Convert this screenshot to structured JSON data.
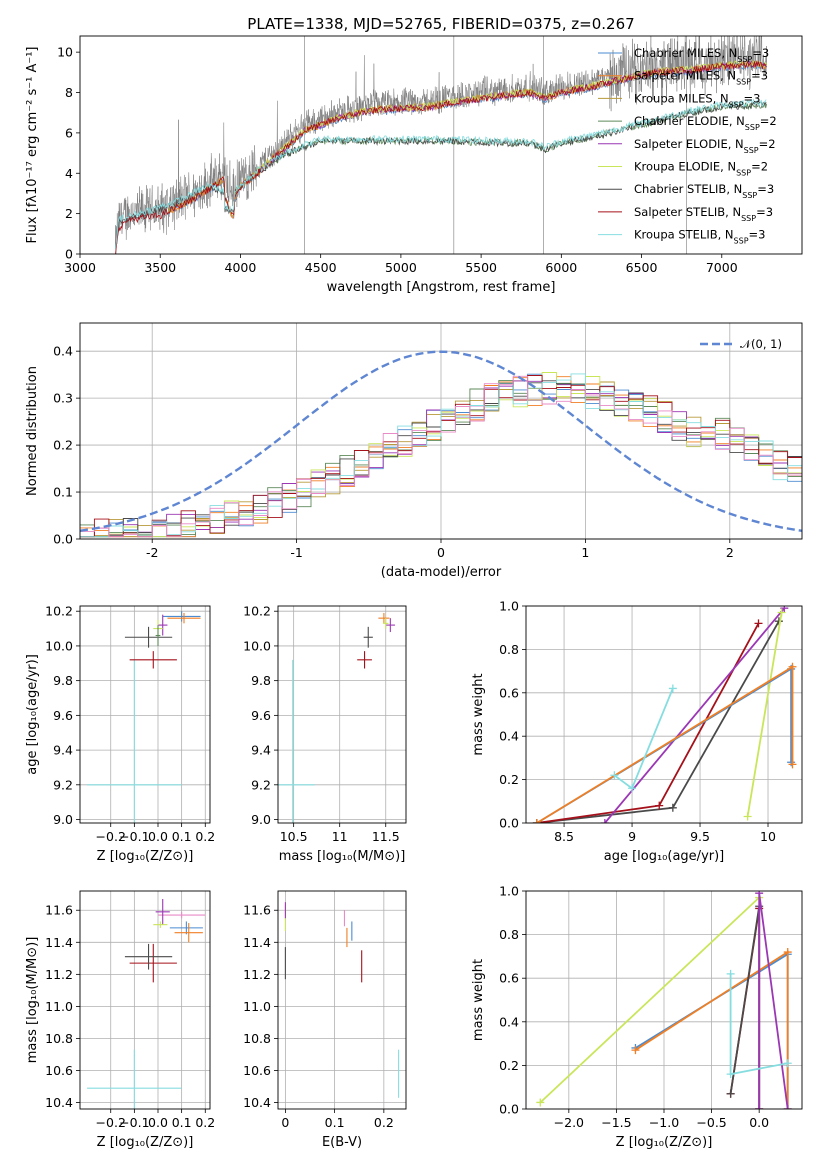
{
  "colors": {
    "chabrier_miles": "#4b8bd0",
    "salpeter_miles": "#f07f24",
    "kroupa_miles": "#b79a3a",
    "chabrier_elodie": "#5d8a5a",
    "salpeter_elodie": "#9b37b4",
    "kroupa_elodie": "#c9e65a",
    "chabrier_stelib": "#4a4a4a",
    "salpeter_stelib": "#a5111a",
    "kroupa_stelib": "#86dde0",
    "data_gray": "#7a7a7a",
    "gauss": "#5f86d2",
    "pink": "#e88bc7"
  },
  "chart_data": [
    {
      "id": "spectrum",
      "type": "line",
      "title": "PLATE=1338, MJD=52765, FIBERID=0375, z=0.267",
      "xlabel": "wavelength [Angstrom, rest frame]",
      "ylabel": "Flux [fλ10⁻¹⁷ erg cm⁻² s⁻¹ A⁻¹]",
      "xlim": [
        3000,
        7500
      ],
      "ylim": [
        0,
        10.8
      ],
      "xticks": [
        3000,
        3500,
        4000,
        4500,
        5000,
        5500,
        6000,
        6500,
        7000
      ],
      "yticks": [
        0,
        2,
        4,
        6,
        8,
        10
      ],
      "legend": [
        {
          "label": "Chabrier MILES, N",
          "sub": "SSP",
          "tail": "=3",
          "color": "chabrier_miles"
        },
        {
          "label": "Salpeter MILES, N",
          "sub": "SSP",
          "tail": "=3",
          "color": "salpeter_miles"
        },
        {
          "label": "Kroupa MILES, N",
          "sub": "SSP",
          "tail": "=3",
          "color": "kroupa_miles"
        },
        {
          "label": "Chabrier ELODIE, N",
          "sub": "SSP",
          "tail": "=2",
          "color": "chabrier_elodie"
        },
        {
          "label": "Salpeter ELODIE, N",
          "sub": "SSP",
          "tail": "=2",
          "color": "salpeter_elodie"
        },
        {
          "label": "Kroupa ELODIE, N",
          "sub": "SSP",
          "tail": "=2",
          "color": "kroupa_elodie"
        },
        {
          "label": "Chabrier STELIB, N",
          "sub": "SSP",
          "tail": "=3",
          "color": "chabrier_stelib"
        },
        {
          "label": "Salpeter STELIB, N",
          "sub": "SSP",
          "tail": "=3",
          "color": "salpeter_stelib"
        },
        {
          "label": "Kroupa STELIB, N",
          "sub": "SSP",
          "tail": "=3",
          "color": "kroupa_stelib"
        }
      ],
      "legend_position": "top-right",
      "spectrum_knots": [
        [
          3220,
          0.1
        ],
        [
          3240,
          1.6
        ],
        [
          3300,
          2.0
        ],
        [
          3400,
          2.1
        ],
        [
          3500,
          2.2
        ],
        [
          3600,
          2.6
        ],
        [
          3700,
          3.0
        ],
        [
          3800,
          3.5
        ],
        [
          3900,
          4.0
        ],
        [
          3950,
          2.9
        ],
        [
          4000,
          3.6
        ],
        [
          4100,
          4.3
        ],
        [
          4200,
          5.0
        ],
        [
          4300,
          5.7
        ],
        [
          4400,
          6.4
        ],
        [
          4600,
          7.0
        ],
        [
          4800,
          7.4
        ],
        [
          5000,
          7.5
        ],
        [
          5200,
          7.6
        ],
        [
          5400,
          7.9
        ],
        [
          5600,
          8.1
        ],
        [
          5800,
          8.3
        ],
        [
          5900,
          8.0
        ],
        [
          6000,
          8.3
        ],
        [
          6200,
          8.6
        ],
        [
          6400,
          9.0
        ],
        [
          6600,
          9.3
        ],
        [
          6800,
          9.4
        ],
        [
          7000,
          9.6
        ],
        [
          7200,
          9.7
        ],
        [
          7280,
          9.6
        ]
      ],
      "low_model_knots": [
        [
          3220,
          0.1
        ],
        [
          3240,
          1.6
        ],
        [
          3400,
          2.0
        ],
        [
          3600,
          2.5
        ],
        [
          3800,
          3.3
        ],
        [
          3950,
          2.9
        ],
        [
          4100,
          4.0
        ],
        [
          4300,
          5.0
        ],
        [
          4500,
          5.6
        ],
        [
          4800,
          5.6
        ],
        [
          5000,
          5.6
        ],
        [
          5300,
          5.6
        ],
        [
          5600,
          5.5
        ],
        [
          5800,
          5.5
        ],
        [
          5900,
          5.2
        ],
        [
          6000,
          5.5
        ],
        [
          6200,
          5.8
        ],
        [
          6400,
          6.2
        ],
        [
          6600,
          6.6
        ],
        [
          6800,
          7.0
        ],
        [
          7000,
          7.3
        ],
        [
          7280,
          7.4
        ]
      ]
    },
    {
      "id": "residuals",
      "type": "histogram",
      "xlabel": "(data-model)/error",
      "ylabel": "Normed distribution",
      "xlim": [
        -2.5,
        2.5
      ],
      "ylim": [
        0,
        0.46
      ],
      "xticks": [
        -2,
        -1,
        0,
        1,
        2
      ],
      "yticks": [
        0.0,
        0.1,
        0.2,
        0.3,
        0.4
      ],
      "legend": [
        {
          "label": "𝒩(0, 1)",
          "color": "gauss",
          "style": "dashed"
        }
      ],
      "legend_position": "top-right",
      "gaussian": {
        "mu": 0,
        "sigma": 1
      }
    },
    {
      "id": "age_vs_Z",
      "type": "errorbar",
      "xlabel": "Z [log₁₀(Z/Z⊙)]",
      "ylabel": "age  [log₁₀(age/yr)]",
      "xlim": [
        -0.33,
        0.22
      ],
      "ylim": [
        8.98,
        10.23
      ],
      "xticks": [
        -0.2,
        -0.1,
        0.0,
        0.1,
        0.2
      ],
      "xtick_labels": [
        "−0.2",
        "−0.1",
        "0.0",
        "0.1",
        "0.2"
      ],
      "yticks": [
        9.0,
        9.2,
        9.4,
        9.6,
        9.8,
        10.0,
        10.2
      ],
      "points": [
        {
          "x": -0.1,
          "y": 9.2,
          "xerr": 0.2,
          "yerr": 0.72,
          "color": "kroupa_stelib"
        },
        {
          "x": -0.02,
          "y": 9.92,
          "xerr": 0.1,
          "yerr": 0.05,
          "color": "salpeter_stelib"
        },
        {
          "x": -0.04,
          "y": 10.05,
          "xerr": 0.1,
          "yerr": 0.06,
          "color": "chabrier_stelib"
        },
        {
          "x": 0.1,
          "y": 10.17,
          "xerr": 0.08,
          "yerr": 0.03,
          "color": "chabrier_miles"
        },
        {
          "x": 0.11,
          "y": 10.16,
          "xerr": 0.07,
          "yerr": 0.03,
          "color": "salpeter_miles"
        },
        {
          "x": 0.02,
          "y": 10.12,
          "xerr": 0.02,
          "yerr": 0.06,
          "color": "salpeter_elodie"
        },
        {
          "x": 0.0,
          "y": 10.1,
          "xerr": 0.02,
          "yerr": 0.05,
          "color": "kroupa_elodie"
        },
        {
          "x": 0.0,
          "y": 10.06,
          "xerr": 0.01,
          "yerr": 0.06,
          "color": "chabrier_elodie"
        }
      ]
    },
    {
      "id": "age_vs_mass",
      "type": "errorbar",
      "xlabel": "mass [log₁₀(M/M⊙)]",
      "ylabel": "",
      "xlim": [
        10.33,
        11.72
      ],
      "ylim": [
        8.98,
        10.23
      ],
      "xticks": [
        10.5,
        11.0,
        11.5
      ],
      "yticks": [
        9.0,
        9.2,
        9.4,
        9.6,
        9.8,
        10.0,
        10.2
      ],
      "points": [
        {
          "x": 10.49,
          "y": 9.2,
          "xerr": 0.24,
          "yerr": 0.72,
          "color": "kroupa_stelib"
        },
        {
          "x": 11.27,
          "y": 9.92,
          "xerr": 0.08,
          "yerr": 0.05,
          "color": "salpeter_stelib"
        },
        {
          "x": 11.31,
          "y": 10.05,
          "xerr": 0.05,
          "yerr": 0.06,
          "color": "chabrier_stelib"
        },
        {
          "x": 11.48,
          "y": 10.16,
          "xerr": 0.06,
          "yerr": 0.03,
          "color": "salpeter_miles"
        },
        {
          "x": 11.55,
          "y": 10.12,
          "xerr": 0.05,
          "yerr": 0.04,
          "color": "salpeter_elodie"
        },
        {
          "x": 11.5,
          "y": 10.13,
          "xerr": 0.03,
          "yerr": 0.03,
          "color": "kroupa_elodie"
        }
      ]
    },
    {
      "id": "weight_vs_age",
      "type": "line",
      "xlabel": "age  [log₁₀(age/yr)]",
      "ylabel": "mass weight",
      "xlim": [
        8.22,
        10.25
      ],
      "ylim": [
        0,
        1
      ],
      "xticks": [
        8.5,
        9.0,
        9.5,
        10.0
      ],
      "yticks": [
        0.0,
        0.2,
        0.4,
        0.6,
        0.8,
        1.0
      ],
      "series": [
        {
          "color": "chabrier_stelib",
          "x": [
            8.3,
            9.3,
            10.08
          ],
          "y": [
            0.0,
            0.07,
            0.93
          ]
        },
        {
          "color": "salpeter_stelib",
          "x": [
            8.3,
            9.2,
            9.93
          ],
          "y": [
            0.0,
            0.08,
            0.92
          ]
        },
        {
          "color": "salpeter_elodie",
          "x": [
            8.8,
            10.12
          ],
          "y": [
            0.0,
            0.99
          ]
        },
        {
          "color": "kroupa_elodie",
          "x": [
            9.85,
            10.1
          ],
          "y": [
            0.03,
            0.97
          ]
        },
        {
          "color": "chabrier_miles",
          "x": [
            8.3,
            10.17,
            10.17
          ],
          "y": [
            0.0,
            0.71,
            0.28
          ]
        },
        {
          "color": "salpeter_miles",
          "x": [
            8.3,
            10.18,
            10.18
          ],
          "y": [
            0.0,
            0.72,
            0.27
          ]
        },
        {
          "color": "kroupa_stelib",
          "x": [
            9.3,
            9.0,
            8.87
          ],
          "y": [
            0.62,
            0.16,
            0.22
          ]
        }
      ]
    },
    {
      "id": "mass_vs_Z",
      "type": "errorbar",
      "xlabel": "Z [log₁₀(Z/Z⊙)]",
      "ylabel": "mass [log₁₀(M/M⊙)]",
      "xlim": [
        -0.33,
        0.22
      ],
      "ylim": [
        10.36,
        11.72
      ],
      "xticks": [
        -0.2,
        -0.1,
        0.0,
        0.1,
        0.2
      ],
      "xtick_labels": [
        "−0.2",
        "−0.1",
        "0.0",
        "0.1",
        "0.2"
      ],
      "yticks": [
        10.4,
        10.6,
        10.8,
        11.0,
        11.2,
        11.4,
        11.6
      ],
      "points": [
        {
          "x": -0.1,
          "y": 10.49,
          "xerr": 0.2,
          "yerr": 0.24,
          "color": "kroupa_stelib"
        },
        {
          "x": -0.02,
          "y": 11.27,
          "xerr": 0.1,
          "yerr": 0.12,
          "color": "salpeter_stelib"
        },
        {
          "x": -0.04,
          "y": 11.31,
          "xerr": 0.1,
          "yerr": 0.08,
          "color": "chabrier_stelib"
        },
        {
          "x": 0.12,
          "y": 11.49,
          "xerr": 0.07,
          "yerr": 0.04,
          "color": "chabrier_miles"
        },
        {
          "x": 0.13,
          "y": 11.46,
          "xerr": 0.06,
          "yerr": 0.06,
          "color": "salpeter_miles"
        },
        {
          "x": 0.1,
          "y": 11.57,
          "xerr": 0.1,
          "yerr": 0.02,
          "color": "pink"
        },
        {
          "x": 0.02,
          "y": 11.59,
          "xerr": 0.03,
          "yerr": 0.08,
          "color": "salpeter_elodie"
        },
        {
          "x": 0.01,
          "y": 11.51,
          "xerr": 0.03,
          "yerr": 0.02,
          "color": "kroupa_elodie"
        }
      ]
    },
    {
      "id": "mass_vs_ebv",
      "type": "errorbar",
      "xlabel": "E(B-V)",
      "ylabel": "",
      "xlim": [
        -0.015,
        0.245
      ],
      "ylim": [
        10.36,
        11.72
      ],
      "xticks": [
        0.0,
        0.1,
        0.2
      ],
      "yticks": [
        10.4,
        10.6,
        10.8,
        11.0,
        11.2,
        11.4,
        11.6
      ],
      "points": [
        {
          "x": 0.0,
          "y": 11.27,
          "xerr": 0.0,
          "yerr": 0.1,
          "color": "chabrier_stelib"
        },
        {
          "x": 0.0,
          "y": 11.55,
          "xerr": 0.0,
          "yerr": 0.08,
          "color": "kroupa_elodie"
        },
        {
          "x": 0.0,
          "y": 11.6,
          "xerr": 0.0,
          "yerr": 0.05,
          "color": "salpeter_elodie"
        },
        {
          "x": 0.12,
          "y": 11.55,
          "xerr": 0.0,
          "yerr": 0.05,
          "color": "pink"
        },
        {
          "x": 0.125,
          "y": 11.43,
          "xerr": 0.0,
          "yerr": 0.06,
          "color": "salpeter_miles"
        },
        {
          "x": 0.135,
          "y": 11.47,
          "xerr": 0.0,
          "yerr": 0.06,
          "color": "chabrier_miles"
        },
        {
          "x": 0.155,
          "y": 11.25,
          "xerr": 0.0,
          "yerr": 0.1,
          "color": "salpeter_stelib"
        },
        {
          "x": 0.23,
          "y": 10.58,
          "xerr": 0.0,
          "yerr": 0.15,
          "color": "kroupa_stelib"
        }
      ]
    },
    {
      "id": "weight_vs_Z",
      "type": "line",
      "xlabel": "Z [log₁₀(Z/Z⊙)]",
      "ylabel": "mass weight",
      "xlim": [
        -2.45,
        0.45
      ],
      "ylim": [
        0,
        1
      ],
      "xticks": [
        -2.0,
        -1.5,
        -1.0,
        -0.5,
        0.0
      ],
      "xtick_labels": [
        "−2.0",
        "−1.5",
        "−1.0",
        "−0.5",
        "0.0"
      ],
      "yticks": [
        0.0,
        0.2,
        0.4,
        0.6,
        0.8,
        1.0
      ],
      "series": [
        {
          "color": "kroupa_elodie",
          "x": [
            -2.3,
            0.0
          ],
          "y": [
            0.03,
            0.97
          ]
        },
        {
          "color": "chabrier_miles",
          "x": [
            -1.3,
            0.3,
            0.3
          ],
          "y": [
            0.28,
            0.71,
            0.0
          ]
        },
        {
          "color": "salpeter_miles",
          "x": [
            -1.3,
            0.3,
            0.3
          ],
          "y": [
            0.27,
            0.72,
            0.0
          ]
        },
        {
          "color": "salpeter_stelib",
          "x": [
            -0.3,
            0.0,
            0.0
          ],
          "y": [
            0.07,
            0.92,
            0.0
          ]
        },
        {
          "color": "chabrier_stelib",
          "x": [
            -0.3,
            0.0,
            0.0
          ],
          "y": [
            0.07,
            0.93,
            0.0
          ]
        },
        {
          "color": "salpeter_elodie",
          "x": [
            0.0,
            0.0,
            0.3
          ],
          "y": [
            0.0,
            0.99,
            0.0
          ]
        },
        {
          "color": "kroupa_stelib",
          "x": [
            -0.3,
            -0.3,
            0.3
          ],
          "y": [
            0.62,
            0.16,
            0.21
          ]
        }
      ]
    }
  ]
}
